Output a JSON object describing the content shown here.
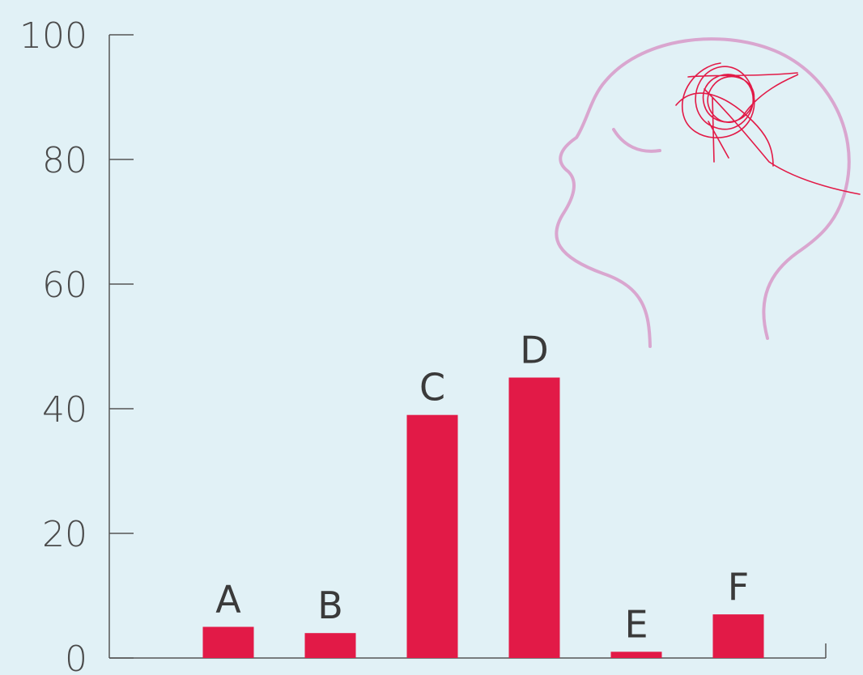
{
  "chart_data": {
    "type": "bar",
    "categories": [
      "A",
      "B",
      "C",
      "D",
      "E",
      "F"
    ],
    "values": [
      5,
      4,
      39,
      45,
      1,
      7
    ],
    "ylim": [
      0,
      100
    ],
    "yticks": [
      0,
      20,
      40,
      60,
      80,
      100
    ],
    "title": "",
    "xlabel": "",
    "ylabel": "",
    "grid": false,
    "legend": "none"
  },
  "colors": {
    "background": "#e1f1f6",
    "bar": "#e21a47",
    "axis": "#555555",
    "head_outline": "#d9a6cf",
    "scribble": "#e21a47"
  },
  "illustration": {
    "icon": "head-with-tangled-thoughts-icon"
  }
}
